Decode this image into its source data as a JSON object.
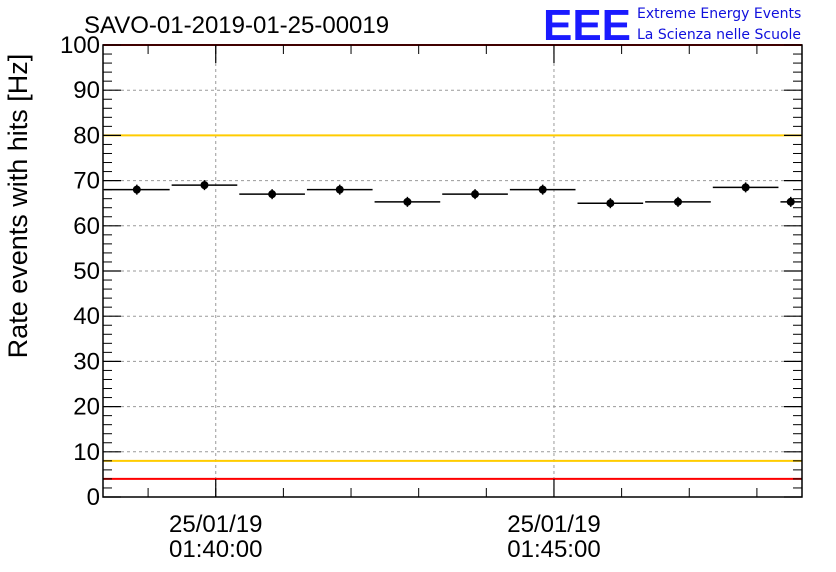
{
  "chart_data": {
    "type": "scatter",
    "title": "SAVO-01-2019-01-25-00019",
    "ylabel": "Rate events with hits [Hz]",
    "xlabel": "",
    "ylim": [
      0,
      100
    ],
    "y_ticks": [
      0,
      10,
      20,
      30,
      40,
      50,
      60,
      70,
      80,
      90,
      100
    ],
    "x_ticks": [
      {
        "date": "25/01/19",
        "time": "01:40:00"
      },
      {
        "date": "25/01/19",
        "time": "01:45:00"
      }
    ],
    "grid": true,
    "x_unit": "time (hh:mm:ss) on 2019-01-25",
    "x_start": "01:38:20",
    "x_end": "01:48:40",
    "series": [
      {
        "style": "points with horizontal bin bars",
        "color": "#000000",
        "points": [
          {
            "x_start": "01:38:20",
            "x_end": "01:39:20",
            "y": 68
          },
          {
            "x_start": "01:39:20",
            "x_end": "01:40:20",
            "y": 69
          },
          {
            "x_start": "01:40:20",
            "x_end": "01:41:20",
            "y": 67
          },
          {
            "x_start": "01:41:20",
            "x_end": "01:42:20",
            "y": 68
          },
          {
            "x_start": "01:42:20",
            "x_end": "01:43:20",
            "y": 65.3
          },
          {
            "x_start": "01:43:20",
            "x_end": "01:44:20",
            "y": 67
          },
          {
            "x_start": "01:44:20",
            "x_end": "01:45:20",
            "y": 68
          },
          {
            "x_start": "01:45:20",
            "x_end": "01:46:20",
            "y": 65
          },
          {
            "x_start": "01:46:20",
            "x_end": "01:47:20",
            "y": 65.3
          },
          {
            "x_start": "01:47:20",
            "x_end": "01:48:20",
            "y": 68.5
          },
          {
            "x_start": "01:48:20",
            "x_end": "01:48:40",
            "y": 65.3
          }
        ]
      }
    ],
    "reference_lines": [
      {
        "y": 100,
        "color": "#ff0000"
      },
      {
        "y": 80,
        "color": "#ffcc00"
      },
      {
        "y": 8,
        "color": "#ffcc00"
      },
      {
        "y": 4,
        "color": "#ff0000"
      }
    ]
  },
  "logo": {
    "mark": "EEE",
    "line1": "Extreme Energy Events",
    "line2": "La Scienza nelle Scuole",
    "color": "#1a1aff"
  }
}
